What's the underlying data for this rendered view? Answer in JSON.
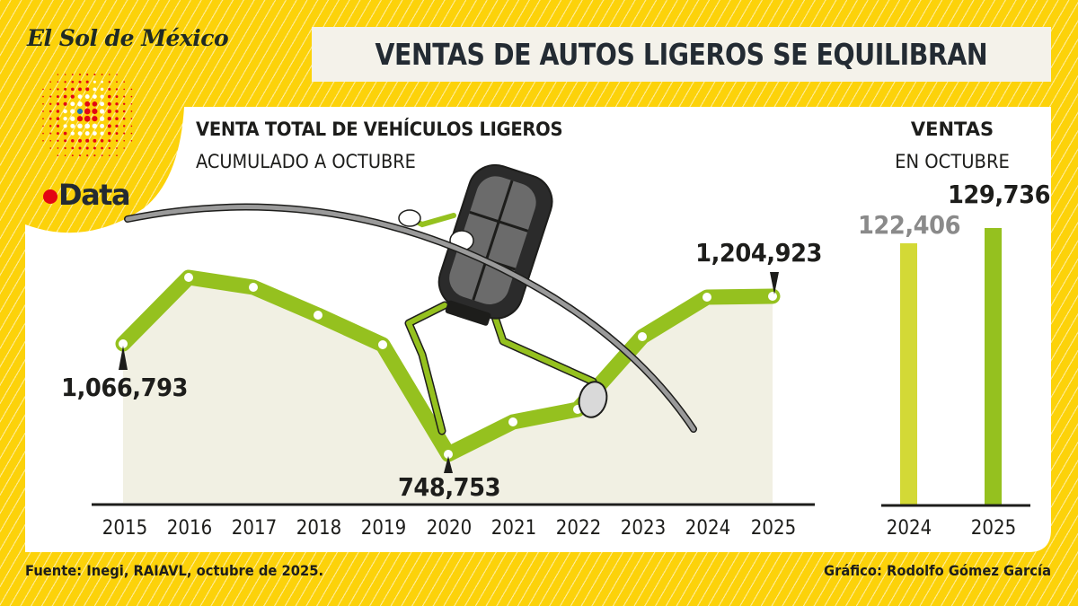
{
  "header": {
    "publication": "El Sol de México",
    "section_logo": "Data",
    "title": "VENTAS DE AUTOS LIGEROS SE EQUILIBRAN"
  },
  "colors": {
    "background_yellow": "#fcd20a",
    "line_green": "#95c11f",
    "fill_beige": "#f1f0e3",
    "bar_2024": "#d3d936",
    "bar_2025": "#95c11f",
    "title_text": "#232b33",
    "logo_red": "#e30613",
    "logo_blue": "#1d71b8"
  },
  "line_chart": {
    "title": "VENTA TOTAL DE VEHÍCULOS LIGEROS",
    "subtitle": "ACUMULADO A OCTUBRE",
    "labels": {
      "first": "1,066,793",
      "min": "748,753",
      "last": "1,204,923"
    },
    "years": [
      "2015",
      "2016",
      "2017",
      "2018",
      "2019",
      "2020",
      "2021",
      "2022",
      "2023",
      "2024",
      "2025"
    ]
  },
  "bar_chart": {
    "title": "VENTAS",
    "subtitle": "EN OCTUBRE",
    "bars": [
      {
        "year": "2024",
        "label": "122,406"
      },
      {
        "year": "2025",
        "label": "129,736"
      }
    ]
  },
  "footer": {
    "source": "Fuente: Inegi, RAIAVL, octubre de 2025.",
    "credit": "Gráfico: Rodolfo Gómez García"
  },
  "illustration": {
    "description": "car-key-fob-character-pole-vaulting"
  },
  "chart_data": [
    {
      "type": "line",
      "title": "VENTA TOTAL DE VEHÍCULOS LIGEROS",
      "subtitle": "ACUMULADO A OCTUBRE",
      "xlabel": "",
      "ylabel": "",
      "categories": [
        "2015",
        "2016",
        "2017",
        "2018",
        "2019",
        "2020",
        "2021",
        "2022",
        "2023",
        "2024",
        "2025"
      ],
      "values": [
        1066793,
        1300000,
        1278000,
        1218000,
        1154000,
        748753,
        818000,
        846000,
        1100000,
        1202000,
        1204923
      ],
      "labeled_points": {
        "2015": 1066793,
        "2020": 748753,
        "2025": 1204923
      },
      "fill_under": true,
      "grid": false,
      "legend": null
    },
    {
      "type": "bar",
      "title": "VENTAS",
      "subtitle": "EN OCTUBRE",
      "categories": [
        "2024",
        "2025"
      ],
      "values": [
        122406,
        129736
      ],
      "xlabel": "",
      "ylabel": "",
      "grid": false,
      "legend": null
    }
  ]
}
